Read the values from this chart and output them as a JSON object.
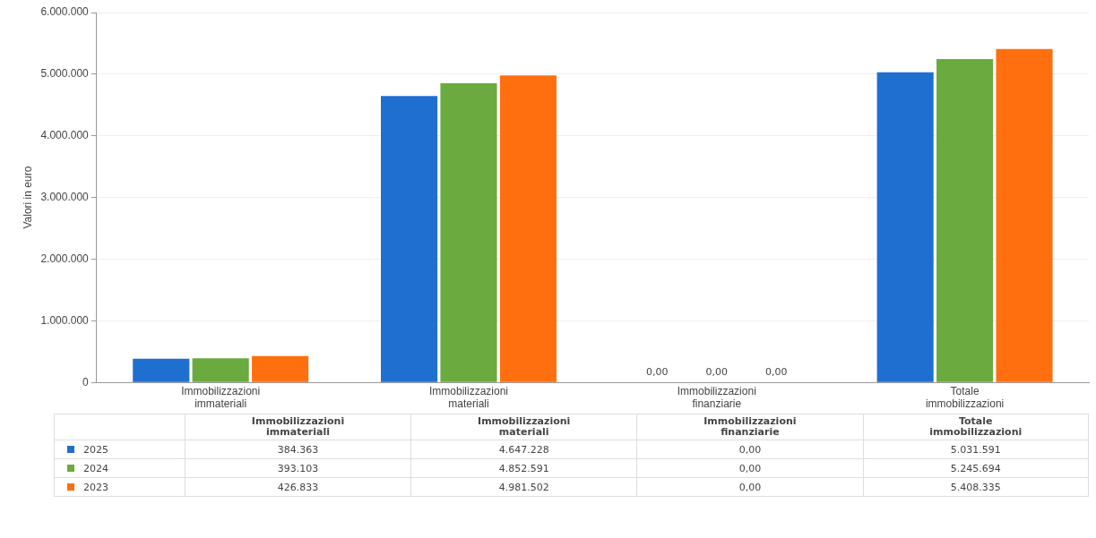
{
  "chart_data": {
    "type": "bar",
    "ylabel": "Valori in euro",
    "categories": [
      "Immobilizzazioni immateriali",
      "Immobilizzazioni materiali",
      "Immobilizzazioni finanziarie",
      "Totale immobilizzazioni"
    ],
    "series": [
      {
        "name": "2025",
        "color": "#1f6fd1",
        "values": [
          384363,
          4647228,
          0,
          5031591
        ],
        "value_labels": [
          "384.363",
          "4.647.228",
          "0,00",
          "5.031.591"
        ]
      },
      {
        "name": "2024",
        "color": "#6aaa3f",
        "values": [
          393103,
          4852591,
          0,
          5245694
        ],
        "value_labels": [
          "393.103",
          "4.852.591",
          "0,00",
          "5.245.694"
        ]
      },
      {
        "name": "2023",
        "color": "#ff6f0f",
        "values": [
          426833,
          4981502,
          0,
          5408335
        ],
        "value_labels": [
          "426.833",
          "4.981.502",
          "0,00",
          "5.408.335"
        ]
      }
    ],
    "ylim": [
      0,
      6000000
    ],
    "yticks": [
      {
        "value": 0,
        "label": "0"
      },
      {
        "value": 1000000,
        "label": "1.000.000"
      },
      {
        "value": 2000000,
        "label": "2.000.000"
      },
      {
        "value": 3000000,
        "label": "3.000.000"
      },
      {
        "value": 4000000,
        "label": "4.000.000"
      },
      {
        "value": 5000000,
        "label": "5.000.000"
      },
      {
        "value": 6000000,
        "label": "6.000.000"
      }
    ],
    "grid": "y",
    "legend": "bottom"
  }
}
